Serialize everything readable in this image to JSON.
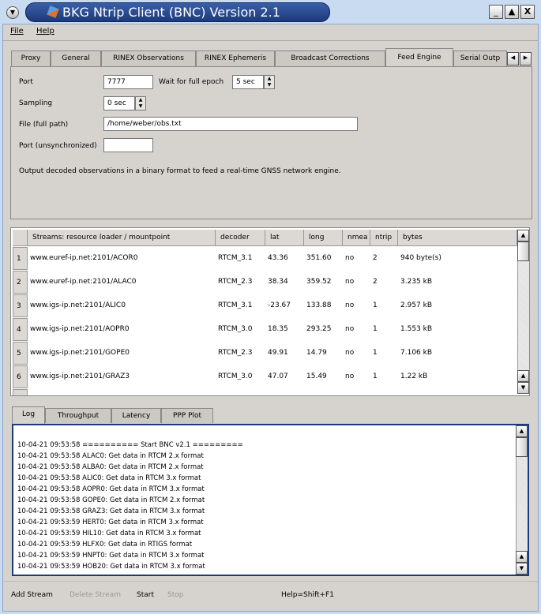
{
  "window": {
    "title": "BKG Ntrip Client (BNC) Version 2.1",
    "controls": [
      "minimize",
      "maximize",
      "close"
    ]
  },
  "menu": [
    {
      "label": "File"
    },
    {
      "label": "Help"
    }
  ],
  "tabs": [
    {
      "label": "Proxy"
    },
    {
      "label": "General"
    },
    {
      "label": "RINEX Observations"
    },
    {
      "label": "RINEX Ephemeris"
    },
    {
      "label": "Broadcast Corrections"
    },
    {
      "label": "Feed Engine",
      "active": true
    },
    {
      "label": "Serial Outp"
    }
  ],
  "feed": {
    "port_label": "Port",
    "port_value": "7777",
    "wait_label": "Wait for full epoch",
    "wait_value": "5 sec",
    "sampling_label": "Sampling",
    "sampling_value": "0 sec",
    "file_label": "File (full path)",
    "file_value": "/home/weber/obs.txt",
    "port_unsync_label": "Port (unsynchronized)",
    "port_unsync_value": "",
    "description": "Output decoded observations in a binary format to feed a real-time GNSS network engine."
  },
  "streams": {
    "columns": [
      "Streams:   resource loader / mountpoint",
      "decoder",
      "lat",
      "long",
      "nmea",
      "ntrip",
      "bytes"
    ],
    "rows": [
      [
        "www.euref-ip.net:2101/ACOR0",
        "RTCM_3.1",
        "43.36",
        "351.60",
        "no",
        "2",
        "940 byte(s)"
      ],
      [
        "www.euref-ip.net:2101/ALAC0",
        "RTCM_2.3",
        "38.34",
        "359.52",
        "no",
        "2",
        "3.235 kB"
      ],
      [
        "www.igs-ip.net:2101/ALIC0",
        "RTCM_3.1",
        "-23.67",
        "133.88",
        "no",
        "1",
        "2.957 kB"
      ],
      [
        "www.igs-ip.net:2101/AOPR0",
        "RTCM_3.0",
        "18.35",
        "293.25",
        "no",
        "1",
        "1.553 kB"
      ],
      [
        "www.igs-ip.net:2101/GOPE0",
        "RTCM_2.3",
        "49.91",
        "14.79",
        "no",
        "1",
        "7.106 kB"
      ],
      [
        "www.igs-ip.net:2101/GRAZ3",
        "RTCM_3.0",
        "47.07",
        "15.49",
        "no",
        "1",
        "1.22 kB"
      ]
    ],
    "row_numbers": [
      "1",
      "2",
      "3",
      "4",
      "5",
      "6"
    ]
  },
  "log_tabs": [
    {
      "label": "Log",
      "active": true
    },
    {
      "label": "Throughput"
    },
    {
      "label": "Latency"
    },
    {
      "label": "PPP Plot"
    }
  ],
  "log": [
    "10-04-21 09:53:58 ========== Start BNC v2.1 =========",
    "10-04-21 09:53:58 ALAC0: Get data in RTCM 2.x format",
    "10-04-21 09:53:58 ALBA0: Get data in RTCM 2.x format",
    "10-04-21 09:53:58 ALIC0: Get data in RTCM 3.x format",
    "10-04-21 09:53:58 AOPR0: Get data in RTCM 3.x format",
    "10-04-21 09:53:58 GOPE0: Get data in RTCM 2.x format",
    "10-04-21 09:53:58 GRAZ3: Get data in RTCM 3.x format",
    "10-04-21 09:53:59 HERT0: Get data in RTCM 3.x format",
    "10-04-21 09:53:59 HIL10: Get data in RTCM 3.x format",
    "10-04-21 09:53:59 HLFX0: Get data in RTIGS format",
    "10-04-21 09:53:59 HNPT0: Get data in RTCM 3.x format",
    "10-04-21 09:53:59 HOB20: Get data in RTCM 3.x format"
  ],
  "buttons": {
    "add": "Add Stream",
    "delete": "Delete Stream",
    "start": "Start",
    "stop": "Stop",
    "help": "Help=Shift+F1"
  }
}
